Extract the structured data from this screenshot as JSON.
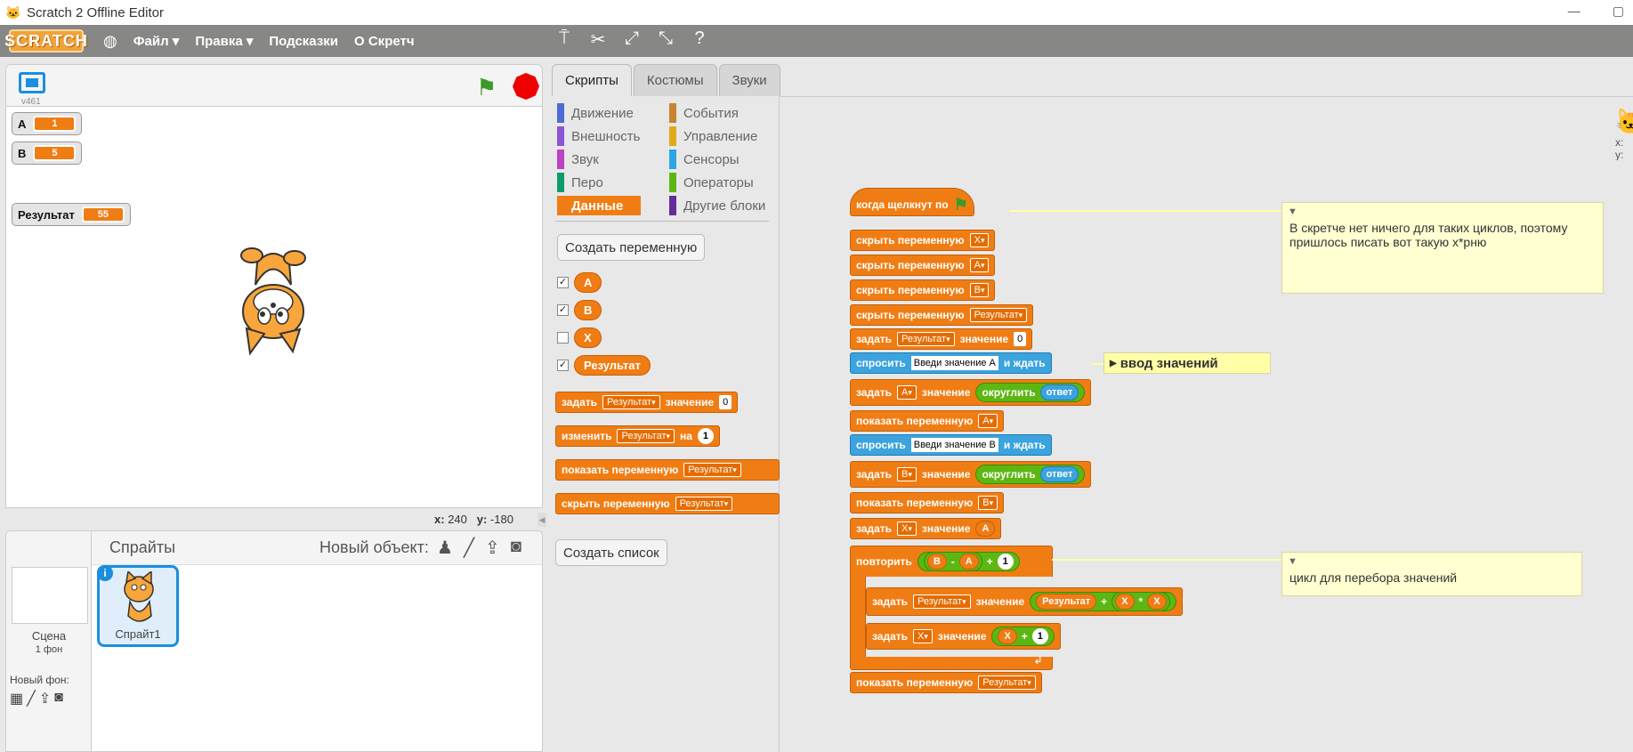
{
  "window": {
    "title": "Scratch 2 Offline Editor",
    "minimize": "—",
    "restore": "▢"
  },
  "menubar": {
    "logo": "SCRATCH",
    "items": [
      "Файл ▾",
      "Правка ▾",
      "Подсказки",
      "О Скретч"
    ]
  },
  "stage": {
    "version": "v461",
    "monitors": [
      {
        "label": "A",
        "value": "1"
      },
      {
        "label": "B",
        "value": "5"
      },
      {
        "label": "Результат",
        "value": "55"
      }
    ],
    "coords": {
      "x_label": "x:",
      "x": "240",
      "y_label": "y:",
      "y": "-180"
    }
  },
  "sprites_pane": {
    "title": "Спрайты",
    "new_object": "Новый объект:",
    "scene_label": "Сцена",
    "scene_sub": "1 фон",
    "new_backdrop": "Новый фон:",
    "sprite_name": "Спрайт1"
  },
  "tabs": [
    "Скрипты",
    "Костюмы",
    "Звуки"
  ],
  "categories": {
    "left": [
      {
        "label": "Движение",
        "color": "#4a6cd4"
      },
      {
        "label": "Внешность",
        "color": "#8a55d7"
      },
      {
        "label": "Звук",
        "color": "#bb42c3"
      },
      {
        "label": "Перо",
        "color": "#0e9a6c"
      },
      {
        "label": "Данные",
        "color": "#ee7d16"
      }
    ],
    "right": [
      {
        "label": "События",
        "color": "#c88330"
      },
      {
        "label": "Управление",
        "color": "#e1a91a"
      },
      {
        "label": "Сенсоры",
        "color": "#2ca5e2"
      },
      {
        "label": "Операторы",
        "color": "#5cb712"
      },
      {
        "label": "Другие блоки",
        "color": "#632d99"
      }
    ],
    "active": "Данные"
  },
  "palette": {
    "make_var": "Создать переменную",
    "vars": [
      {
        "name": "A",
        "checked": "✓"
      },
      {
        "name": "B",
        "checked": "✓"
      },
      {
        "name": "X",
        "checked": ""
      },
      {
        "name": "Результат",
        "checked": "✓"
      }
    ],
    "blocks": {
      "set": "задать",
      "set_var": "Результат",
      "to": "значение",
      "set_val": "0",
      "change": "изменить",
      "change_var": "Результат",
      "by": "на",
      "change_val": "1",
      "show": "показать переменную",
      "show_var": "Результат",
      "hide": "скрыть переменную",
      "hide_var": "Результат"
    },
    "make_list": "Создать список"
  },
  "script": {
    "when_flag": "когда щелкнут по",
    "hide": "скрыть переменную",
    "show": "показать переменную",
    "set": "задать",
    "to": "значение",
    "ask": "спросить",
    "and_wait": "и ждать",
    "round": "округлить",
    "answer": "ответ",
    "repeat": "повторить",
    "vars": {
      "x": "X",
      "a": "A",
      "b": "B",
      "res": "Результат"
    },
    "ask_a": "Введи значение A",
    "ask_b": "Введи значение B",
    "zero": "0",
    "one": "1",
    "minus": "-",
    "plus": "+",
    "times": "*"
  },
  "comments": {
    "c1": "В скретче нет ничего для таких циклов, поэтому пришлось писать вот такую х*рню",
    "c2": "ввод значений",
    "c3": "цикл для перебора значений"
  },
  "sprite_corner": {
    "x": "x:",
    "y": "y:"
  }
}
